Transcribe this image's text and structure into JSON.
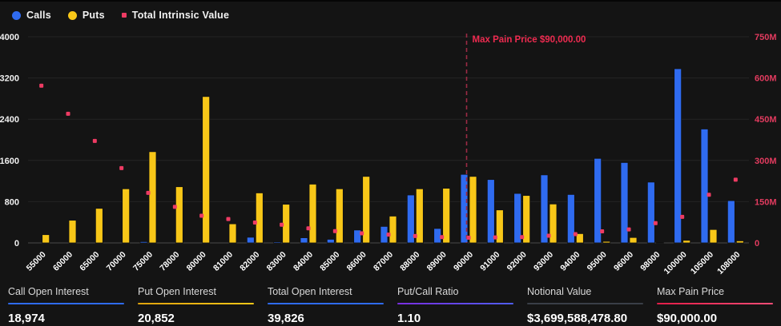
{
  "legend": {
    "items": [
      {
        "label": "Calls",
        "shape": "circle",
        "color": "#2f6bf0"
      },
      {
        "label": "Puts",
        "shape": "circle",
        "color": "#f8c718"
      },
      {
        "label": "Total Intrinsic Value",
        "shape": "square",
        "color": "#ee3b63"
      }
    ]
  },
  "chart_data": {
    "type": "bar",
    "categories": [
      "55000",
      "60000",
      "65000",
      "70000",
      "75000",
      "78000",
      "80000",
      "81000",
      "82000",
      "83000",
      "84000",
      "85000",
      "86000",
      "87000",
      "88000",
      "89000",
      "90000",
      "91000",
      "92000",
      "93000",
      "94000",
      "95000",
      "96000",
      "98000",
      "100000",
      "105000",
      "108000"
    ],
    "series": [
      {
        "name": "Calls",
        "type": "bar",
        "axis": "left",
        "color": "#2f6bf0",
        "values": [
          0,
          0,
          0,
          0,
          25,
          0,
          0,
          0,
          110,
          20,
          100,
          70,
          250,
          320,
          930,
          280,
          1330,
          1230,
          960,
          1320,
          940,
          1640,
          1560,
          1180,
          3380,
          2210,
          820
        ]
      },
      {
        "name": "Puts",
        "type": "bar",
        "axis": "left",
        "color": "#f8c718",
        "values": [
          160,
          440,
          670,
          1050,
          1770,
          1090,
          2840,
          370,
          970,
          750,
          1140,
          1050,
          1290,
          520,
          1050,
          1060,
          1290,
          640,
          920,
          755,
          180,
          30,
          105,
          10,
          50,
          260,
          40
        ]
      },
      {
        "name": "Total Intrinsic Value",
        "type": "scatter",
        "axis": "right",
        "color": "#ee3b63",
        "unit": "M",
        "values": [
          572,
          470,
          371,
          272,
          182,
          131,
          99,
          87,
          74,
          66,
          53,
          43,
          35,
          30,
          25,
          21,
          19,
          20,
          21,
          26,
          32,
          42,
          49,
          72,
          95,
          175,
          230
        ]
      }
    ],
    "left_axis": {
      "tick_labels": [
        "4000",
        "3200",
        "2400",
        "1600",
        "800",
        "0"
      ],
      "tick_values": [
        4000,
        3200,
        2400,
        1600,
        800,
        0
      ],
      "min": 0,
      "max": 4000
    },
    "right_axis": {
      "tick_labels": [
        "750M",
        "600M",
        "450M",
        "300M",
        "150M",
        "0"
      ],
      "tick_values": [
        750,
        600,
        450,
        300,
        150,
        0
      ],
      "min": 0,
      "max": 750,
      "label_color": "#e23b5f"
    },
    "annotation": {
      "label": "Max Pain Price $90,000.00",
      "category": "90000",
      "text_color": "#ef2b50",
      "line_color": "#9c2b45"
    },
    "grid": true,
    "legend_position": "top-left"
  },
  "colors": {
    "background": "#141414",
    "grid_line": "#242424",
    "baseline": "#4a4a4a",
    "axis_text_left": "#f0f0f0",
    "axis_text_x": "#ffffff"
  },
  "stats": [
    {
      "label": "Call Open Interest",
      "value": "18,974",
      "underline": "blue"
    },
    {
      "label": "Put Open Interest",
      "value": "20,852",
      "underline": "gold"
    },
    {
      "label": "Total Open Interest",
      "value": "39,826",
      "underline": "blue"
    },
    {
      "label": "Put/Call Ratio",
      "value": "1.10",
      "underline": "purple"
    },
    {
      "label": "Notional Value",
      "value": "$3,699,588,478.80",
      "underline": "gray"
    },
    {
      "label": "Max Pain Price",
      "value": "$90,000.00",
      "underline": "red"
    }
  ]
}
